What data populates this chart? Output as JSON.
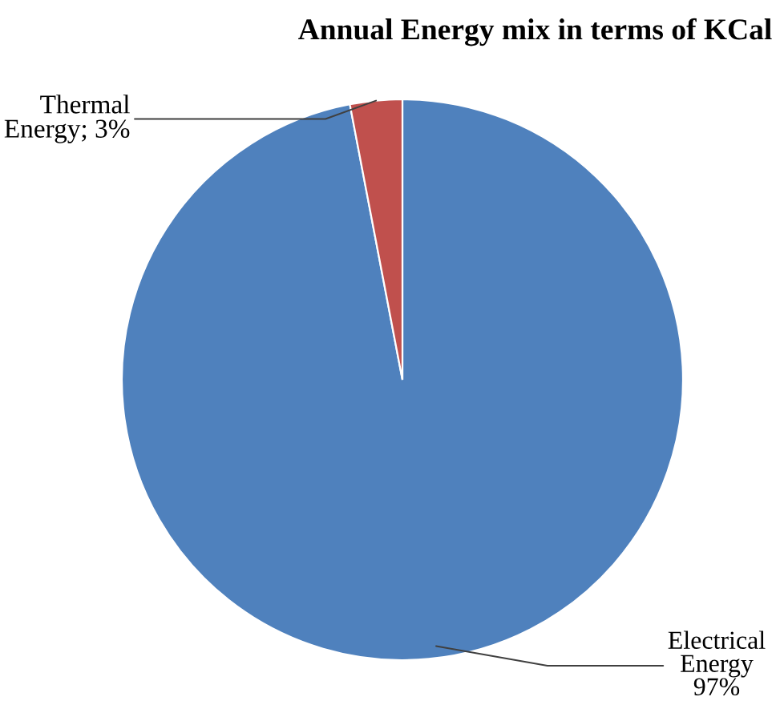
{
  "chart_data": {
    "type": "pie",
    "title": "Annual Energy mix in terms of KCal",
    "categories": [
      "Electrical Energy",
      "Thermal Energy"
    ],
    "values": [
      97,
      3
    ],
    "colors": [
      "#4f81bd",
      "#c0504d"
    ],
    "value_labels": [
      "97%",
      "3%"
    ],
    "legend": false
  }
}
